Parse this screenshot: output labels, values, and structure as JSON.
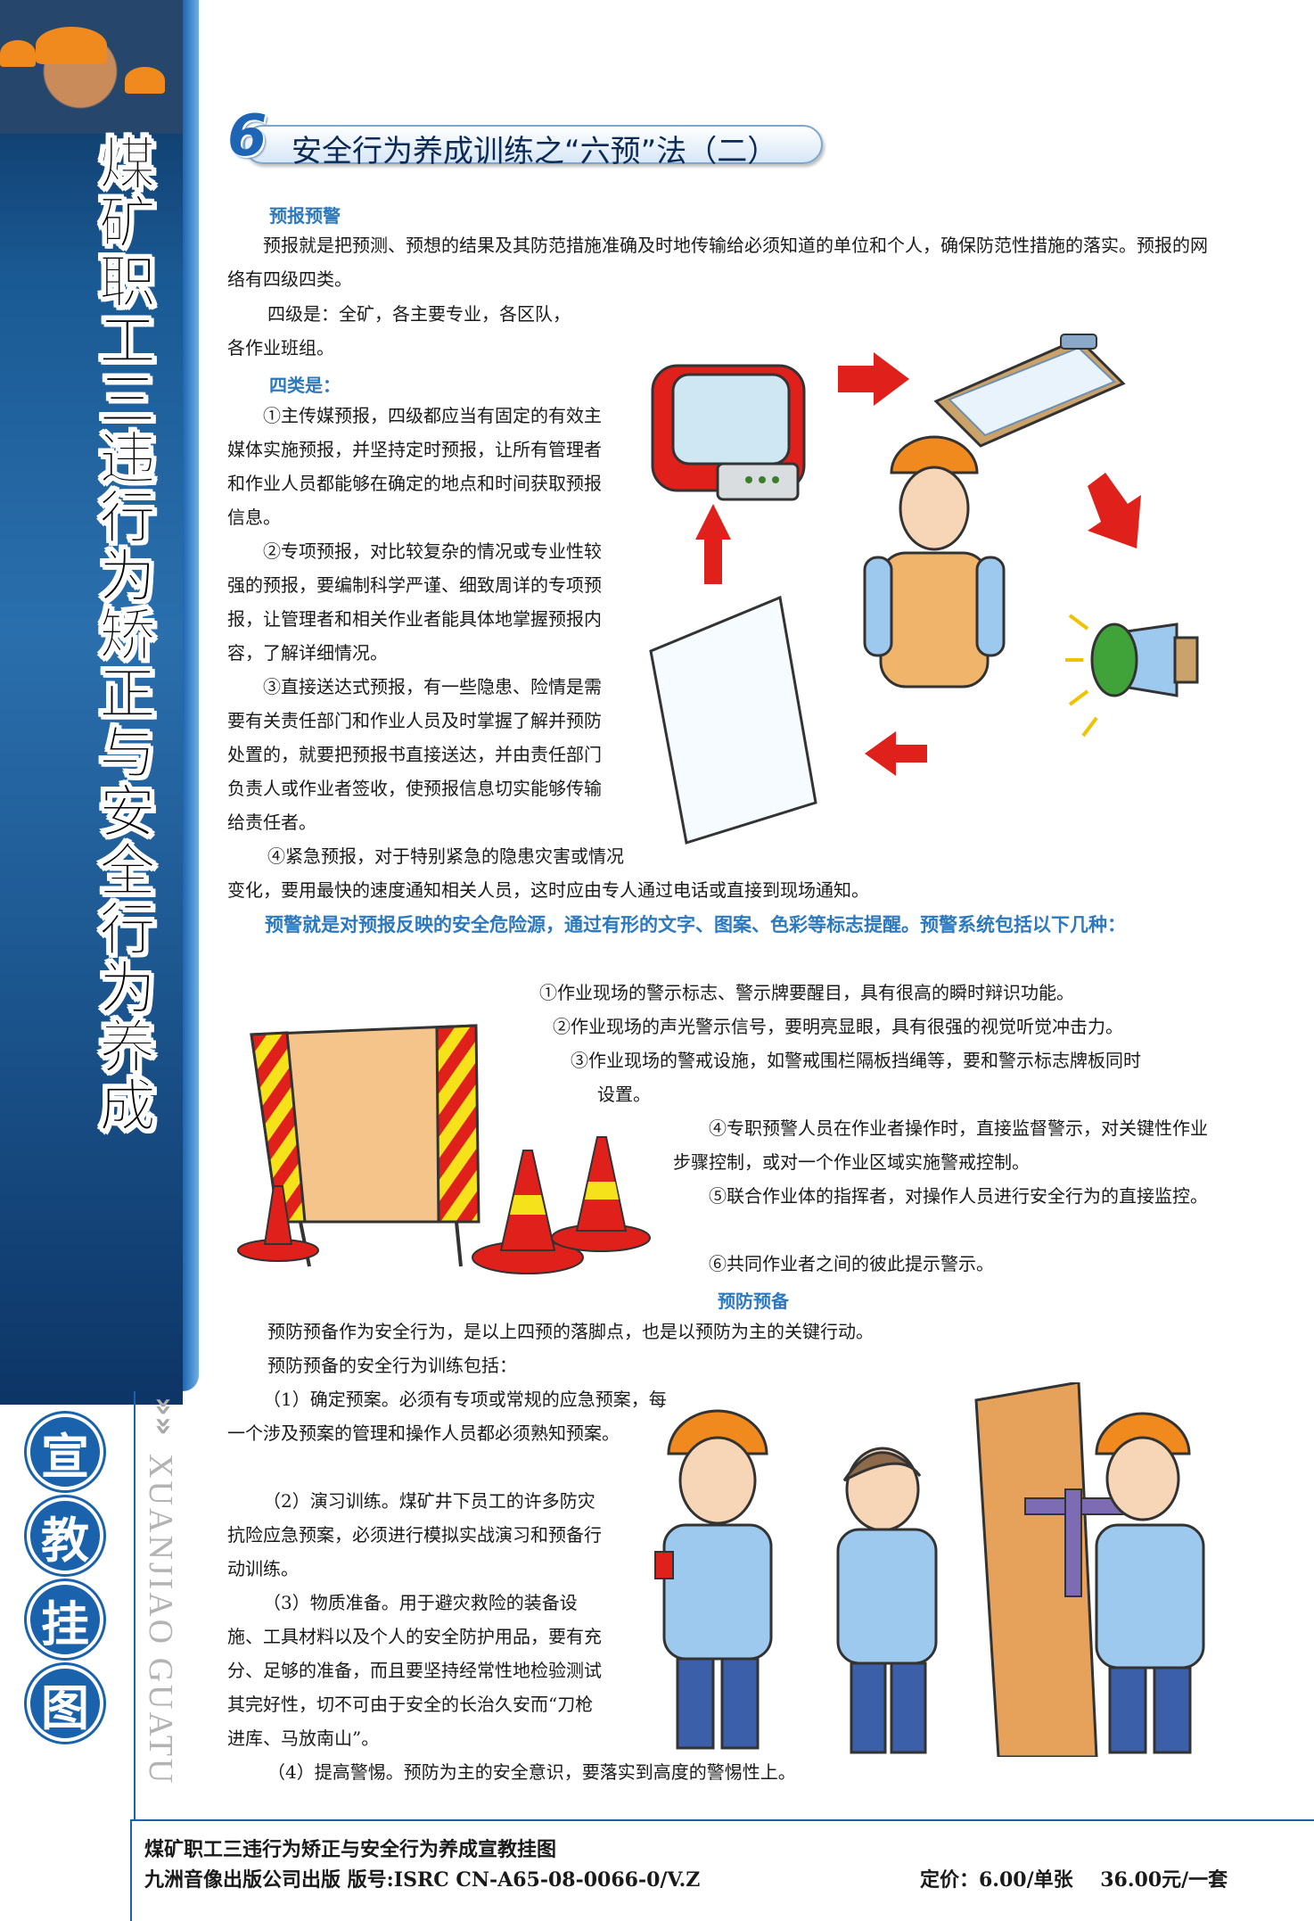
{
  "side": {
    "title": "煤矿职工三违行为矫正与安全行为养成",
    "badge_chars": [
      "宣",
      "教",
      "挂",
      "图"
    ],
    "pinyin": "XUANJIAO GUATU",
    "arrows": "»»"
  },
  "header": {
    "number": "6",
    "title": "安全行为养成训练之“六预”法（二）"
  },
  "section_forecast": {
    "heading": "预报预警",
    "p1": "预报就是把预测、预想的结果及其防范措施准确及时地传输给必须知道的单位和个人，确保防范性措施的落实。预报的网络有四级四类。",
    "p2a": "四级是：全矿，各主要专业，各区队，",
    "p2b": "各作业班组。",
    "four_types": "四类是：",
    "t1": "①主传媒预报，四级都应当有固定的有效主媒体实施预报，并坚持定时预报，让所有管理者和作业人员都能够在确定的地点和时间获取预报信息。",
    "t2": "②专项预报，对比较复杂的情况或专业性较强的预报，要编制科学严谨、细致周详的专项预报，让管理者和相关作业者能具体地掌握预报内容，了解详细情况。",
    "t3": "③直接送达式预报，有一些隐患、险情是需要有关责任部门和作业人员及时掌握了解并预防处置的，就要把预报书直接送达，并由责任部门负责人或作业者签收，使预报信息切实能够传输给责任者。",
    "t4a": "④紧急预报，对于特别紧急的隐患灾害或情况",
    "t4b": "变化，要用最快的速度通知相关人员，这时应由专人通过电话或直接到现场通知。"
  },
  "warning": {
    "intro": "预警就是对预报反映的安全危险源，通过有形的文字、图案、色彩等标志提醒。预警系统包括以下几种：",
    "w1": "①作业现场的警示标志、警示牌要醒目，具有很高的瞬时辩识功能。",
    "w2": "②作业现场的声光警示信号，要明亮显眼，具有很强的视觉听觉冲击力。",
    "w3a": "③作业现场的警戒设施，如警戒围栏隔板挡绳等，要和警示标志牌板同时",
    "w3b": "设置。",
    "w4": "④专职预警人员在作业者操作时，直接监督警示，对关键性作业步骤控制，或对一个作业区域实施警戒控制。",
    "w5": "⑤联合作业体的指挥者，对操作人员进行安全行为的直接监控。",
    "w6": "⑥共同作业者之间的彼此提示警示。"
  },
  "section_prevent": {
    "heading": "预防预备",
    "p1": "预防预备作为安全行为，是以上四预的落脚点，也是以预防为主的关键行动。",
    "p2": "预防预备的安全行为训练包括：",
    "i1": "（1）确定预案。必须有专项或常规的应急预案，每一个涉及预案的管理和操作人员都必须熟知预案。",
    "i2": "（2）演习训练。煤矿井下员工的许多防灾抗险应急预案，必须进行模拟实战演习和预备行动训练。",
    "i3": "（3）物质准备。用于避灾救险的装备设施、工具材料以及个人的安全防护用品，要有充分、足够的准备，而且要坚持经常性地检验测试其完好性，切不可由于安全的长治久安而“刀枪进库、马放南山”。",
    "i4": "（4）提高警惕。预防为主的安全意识，要落实到高度的警惕性上。"
  },
  "footer": {
    "line1": "煤矿职工三违行为矫正与安全行为养成宣教挂图",
    "line2": "九洲音像出版公司出版 版号:ISRC CN-A65-08-0066-0/V.Z",
    "price": "定价：6.00/单张    36.00元/一套"
  },
  "colors": {
    "accent_blue": "#2d79bf",
    "band_blue": "#1a62ab",
    "arrow_red": "#e0201b"
  }
}
